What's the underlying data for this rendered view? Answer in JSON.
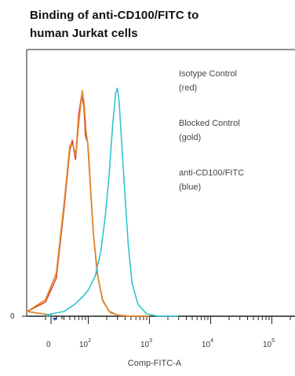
{
  "chart_data": {
    "type": "line",
    "title_lines": [
      "Binding of anti-CD100/FITC to",
      "human Jurkat cells"
    ],
    "xlabel": "Comp-FITC-A",
    "ylabel": "",
    "x_ticks": [
      {
        "base": "0",
        "exp": ""
      },
      {
        "base": "10",
        "exp": "2"
      },
      {
        "base": "10",
        "exp": "3"
      },
      {
        "base": "10",
        "exp": "4"
      },
      {
        "base": "10",
        "exp": "5"
      }
    ],
    "y_ticks": [
      "0"
    ],
    "legend": [
      {
        "line1": "Isotype Control",
        "line2": "(red)"
      },
      {
        "line1": "Blocked Control",
        "line2": "(gold)"
      },
      {
        "line1": "anti-CD100/FITC",
        "line2": " (blue)"
      }
    ],
    "x_scale": "biexponential",
    "xlim": [
      -30,
      200000
    ],
    "ylim": [
      0,
      100
    ],
    "series": [
      {
        "color": "#d8452a",
        "points": [
          [
            -20,
            0
          ],
          [
            0,
            0.5
          ],
          [
            10,
            2
          ],
          [
            20,
            6
          ],
          [
            30,
            16
          ],
          [
            40,
            45
          ],
          [
            50,
            70
          ],
          [
            55,
            74
          ],
          [
            62,
            66
          ],
          [
            70,
            85
          ],
          [
            78,
            93
          ],
          [
            85,
            88
          ],
          [
            90,
            76
          ],
          [
            98,
            73
          ],
          [
            108,
            55
          ],
          [
            120,
            36
          ],
          [
            140,
            18
          ],
          [
            170,
            7
          ],
          [
            220,
            2
          ],
          [
            300,
            0.5
          ],
          [
            500,
            0
          ],
          [
            1000,
            0
          ]
        ]
      },
      {
        "color": "#e08a2a",
        "points": [
          [
            -20,
            0
          ],
          [
            0,
            0.5
          ],
          [
            10,
            2
          ],
          [
            20,
            7
          ],
          [
            30,
            18
          ],
          [
            40,
            47
          ],
          [
            50,
            72
          ],
          [
            56,
            72
          ],
          [
            63,
            68
          ],
          [
            71,
            83
          ],
          [
            80,
            95
          ],
          [
            86,
            89
          ],
          [
            92,
            78
          ],
          [
            100,
            71
          ],
          [
            110,
            53
          ],
          [
            122,
            34
          ],
          [
            145,
            16
          ],
          [
            175,
            6
          ],
          [
            230,
            1.5
          ],
          [
            320,
            0.3
          ],
          [
            500,
            0
          ],
          [
            1000,
            0
          ]
        ]
      },
      {
        "color": "#2ec4cf",
        "points": [
          [
            0,
            0
          ],
          [
            20,
            0.5
          ],
          [
            40,
            2
          ],
          [
            60,
            5
          ],
          [
            80,
            8
          ],
          [
            100,
            11
          ],
          [
            130,
            17
          ],
          [
            160,
            27
          ],
          [
            190,
            42
          ],
          [
            220,
            60
          ],
          [
            250,
            80
          ],
          [
            280,
            94
          ],
          [
            300,
            96
          ],
          [
            320,
            90
          ],
          [
            350,
            74
          ],
          [
            400,
            50
          ],
          [
            450,
            30
          ],
          [
            520,
            14
          ],
          [
            650,
            5
          ],
          [
            900,
            1
          ],
          [
            1400,
            0
          ],
          [
            3000,
            0
          ]
        ]
      }
    ]
  }
}
